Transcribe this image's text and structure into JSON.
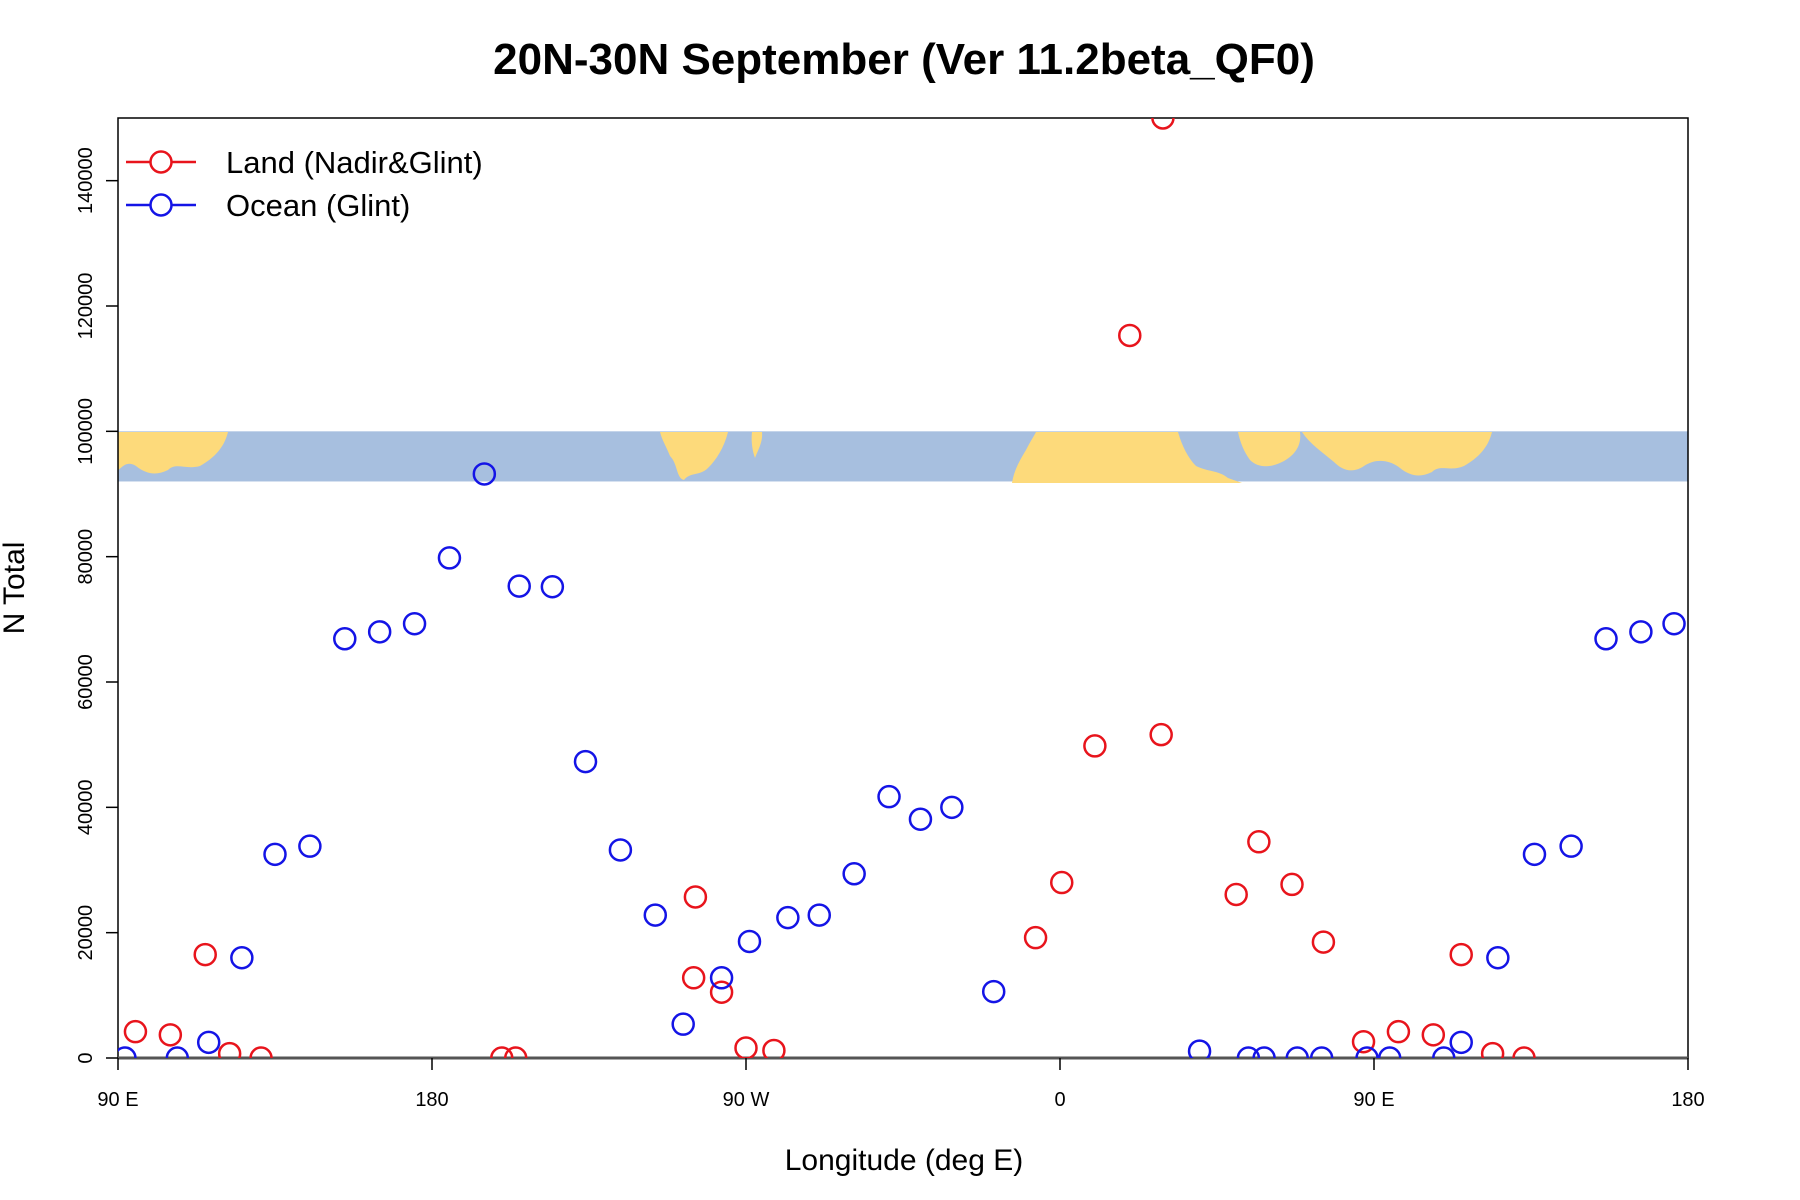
{
  "chart_data": {
    "type": "scatter",
    "title": "20N-30N September (Ver 11.2beta_QF0)",
    "xlabel": "Longitude (deg E)",
    "ylabel": "N Total",
    "xlim": [
      90,
      540
    ],
    "ylim": [
      0,
      150000
    ],
    "x_ticks": [
      {
        "value": 90,
        "label": "90 E"
      },
      {
        "value": 180,
        "label": "180"
      },
      {
        "value": 270,
        "label": "90 W"
      },
      {
        "value": 360,
        "label": "0"
      },
      {
        "value": 450,
        "label": "90 E"
      },
      {
        "value": 540,
        "label": "180"
      }
    ],
    "y_ticks": [
      {
        "value": 0,
        "label": "0"
      },
      {
        "value": 20000,
        "label": "20000"
      },
      {
        "value": 40000,
        "label": "40000"
      },
      {
        "value": 60000,
        "label": "60000"
      },
      {
        "value": 80000,
        "label": "80000"
      },
      {
        "value": 100000,
        "label": "100000"
      },
      {
        "value": 120000,
        "label": "120000"
      },
      {
        "value": 140000,
        "label": "140000"
      }
    ],
    "map_strip_yrange": [
      92000,
      100000
    ],
    "legend_position": "top-left",
    "series": [
      {
        "name": "Land (Nadir&Glint)",
        "color": "#e8141c",
        "points": [
          [
            95,
            4200
          ],
          [
            105,
            3700
          ],
          [
            115,
            16500
          ],
          [
            122,
            700
          ],
          [
            131,
            0
          ],
          [
            200,
            0
          ],
          [
            204,
            0
          ],
          [
            255,
            12800
          ],
          [
            255.5,
            25700
          ],
          [
            263,
            10500
          ],
          [
            270,
            1600
          ],
          [
            278,
            1200
          ],
          [
            353,
            19200
          ],
          [
            360.5,
            28000
          ],
          [
            370,
            49800
          ],
          [
            380,
            115300
          ],
          [
            389.5,
            150000
          ],
          [
            389,
            51600
          ],
          [
            410.5,
            26100
          ],
          [
            417,
            34500
          ],
          [
            426.5,
            27700
          ],
          [
            435.5,
            18500
          ],
          [
            447,
            2600
          ],
          [
            457,
            4200
          ],
          [
            467,
            3700
          ],
          [
            475,
            16500
          ],
          [
            484,
            700
          ],
          [
            493,
            0
          ]
        ]
      },
      {
        "name": "Ocean (Glint)",
        "color": "#1414e6",
        "points": [
          [
            92,
            0
          ],
          [
            107,
            0
          ],
          [
            116,
            2500
          ],
          [
            125.5,
            16000
          ],
          [
            135,
            32500
          ],
          [
            145,
            33800
          ],
          [
            155,
            66900
          ],
          [
            165,
            68000
          ],
          [
            175,
            69300
          ],
          [
            185,
            79800
          ],
          [
            195,
            93200
          ],
          [
            205,
            75300
          ],
          [
            214.5,
            75200
          ],
          [
            224,
            47300
          ],
          [
            234,
            33200
          ],
          [
            244,
            22800
          ],
          [
            252,
            5400
          ],
          [
            263,
            12800
          ],
          [
            271,
            18600
          ],
          [
            282,
            22400
          ],
          [
            291,
            22800
          ],
          [
            301,
            29400
          ],
          [
            311,
            41700
          ],
          [
            320,
            38100
          ],
          [
            329,
            40000
          ],
          [
            341,
            10600
          ],
          [
            400,
            1100
          ],
          [
            414,
            0
          ],
          [
            418.5,
            0
          ],
          [
            428,
            0
          ],
          [
            435,
            0
          ],
          [
            448,
            0
          ],
          [
            454.5,
            0
          ],
          [
            470,
            0
          ],
          [
            475,
            2500
          ],
          [
            485.5,
            16000
          ],
          [
            496,
            32500
          ],
          [
            506.5,
            33800
          ],
          [
            516.5,
            66900
          ],
          [
            526.5,
            68000
          ],
          [
            536,
            69300
          ]
        ]
      }
    ]
  }
}
